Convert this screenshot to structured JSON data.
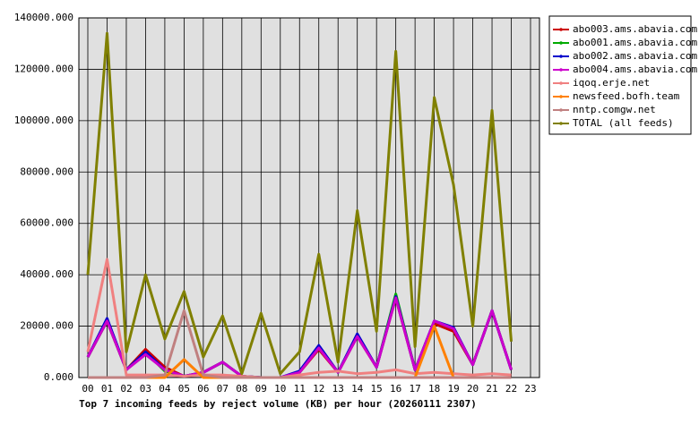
{
  "chart_data": {
    "type": "line",
    "title": "Top 7 incoming feeds by reject volume (KB) per hour (20260111 2307)",
    "categories": [
      "00",
      "01",
      "02",
      "03",
      "04",
      "05",
      "06",
      "07",
      "08",
      "09",
      "10",
      "11",
      "12",
      "13",
      "14",
      "15",
      "16",
      "17",
      "18",
      "19",
      "20",
      "21",
      "22",
      "23"
    ],
    "ylim": [
      0,
      140000
    ],
    "yticks": [
      {
        "value": 0,
        "label": "0.000"
      },
      {
        "value": 20000,
        "label": "20000.000"
      },
      {
        "value": 40000,
        "label": "40000.000"
      },
      {
        "value": 60000,
        "label": "60000.000"
      },
      {
        "value": 80000,
        "label": "80000.000"
      },
      {
        "value": 100000,
        "label": "100000.000"
      },
      {
        "value": 120000,
        "label": "120000.000"
      },
      {
        "value": 140000,
        "label": "140000.000"
      }
    ],
    "grid": true,
    "legend": "right",
    "series": [
      {
        "name": "abo003.ams.abavia.com",
        "color": "#cc0000",
        "values": [
          8000,
          22000,
          3000,
          11000,
          4000,
          500,
          2000,
          6000,
          500,
          0,
          0,
          2000,
          11000,
          2000,
          16000,
          4000,
          31000,
          3000,
          21000,
          18000,
          5000,
          26000,
          3000,
          null
        ]
      },
      {
        "name": "abo001.ams.abavia.com",
        "color": "#00aa00",
        "values": [
          8000,
          22000,
          3000,
          10000,
          2500,
          500,
          2000,
          6000,
          500,
          0,
          0,
          2000,
          12000,
          2000,
          16500,
          4000,
          32500,
          3000,
          22000,
          19000,
          5000,
          26000,
          3000,
          null
        ]
      },
      {
        "name": "abo002.ams.abavia.com",
        "color": "#0000cc",
        "values": [
          8000,
          23000,
          3000,
          10000,
          3000,
          500,
          2000,
          6000,
          500,
          0,
          0,
          2500,
          12500,
          2000,
          17000,
          4000,
          31500,
          3000,
          22000,
          19500,
          5000,
          26000,
          3000,
          null
        ]
      },
      {
        "name": "abo004.ams.abavia.com",
        "color": "#cc00cc",
        "values": [
          8000,
          22000,
          3000,
          9000,
          3000,
          500,
          2000,
          6000,
          500,
          0,
          0,
          2000,
          11500,
          2000,
          16000,
          4000,
          31000,
          3000,
          22000,
          19000,
          5000,
          26000,
          3000,
          null
        ]
      },
      {
        "name": "iqoq.erje.net",
        "color": "#f08080",
        "values": [
          10000,
          46000,
          1000,
          1000,
          1000,
          500,
          1000,
          1000,
          500,
          0,
          0,
          1000,
          2000,
          2500,
          1500,
          2000,
          3000,
          1500,
          2000,
          1500,
          1000,
          1500,
          1000,
          null
        ]
      },
      {
        "name": "newsfeed.bofh.team",
        "color": "#ff8000",
        "values": [
          0,
          0,
          0,
          0,
          0,
          7000,
          0,
          0,
          0,
          0,
          0,
          0,
          0,
          0,
          0,
          0,
          0,
          0,
          20000,
          0,
          0,
          0,
          0,
          null
        ]
      },
      {
        "name": "nntp.comgw.net",
        "color": "#c08080",
        "values": [
          0,
          0,
          0,
          0,
          1000,
          26000,
          1000,
          0,
          0,
          0,
          0,
          0,
          0,
          0,
          0,
          0,
          0,
          0,
          0,
          0,
          0,
          0,
          0,
          null
        ]
      },
      {
        "name": "TOTAL (all feeds)",
        "color": "#808000",
        "values": [
          40000,
          134000,
          10000,
          40000,
          15000,
          33500,
          8000,
          24000,
          1500,
          25000,
          1500,
          10000,
          48000,
          6000,
          65000,
          18000,
          127000,
          12000,
          109000,
          75000,
          20000,
          104000,
          14000,
          null
        ]
      }
    ]
  }
}
